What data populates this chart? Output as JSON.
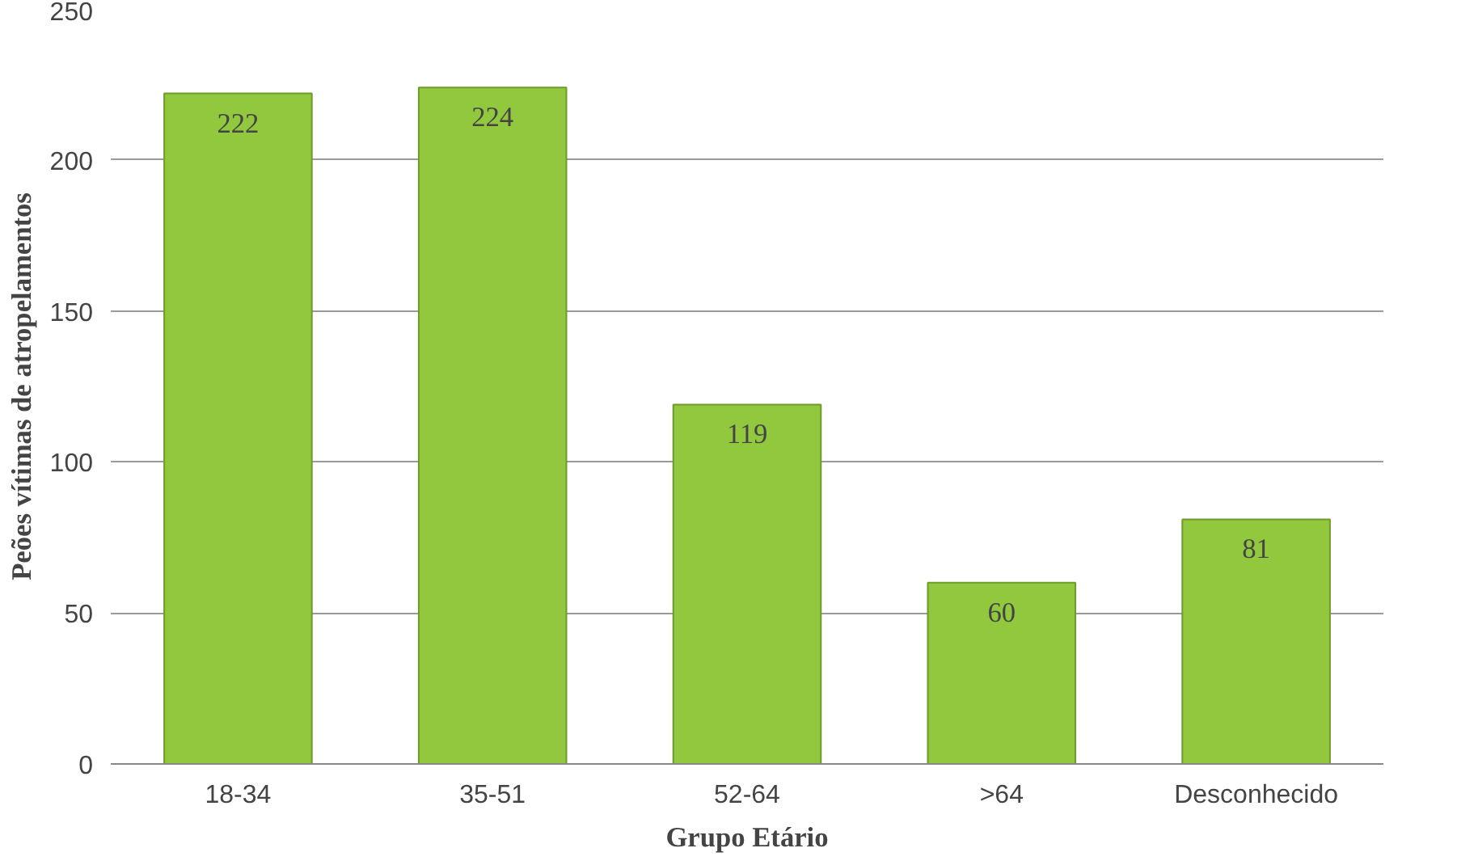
{
  "chart_data": {
    "type": "bar",
    "xlabel": "Grupo Etário",
    "ylabel": "Peões vítimas de atropelamentos",
    "categories": [
      "18-34",
      "35-51",
      "52-64",
      ">64",
      "Desconhecido"
    ],
    "values": [
      222,
      224,
      119,
      60,
      81
    ],
    "color": "#92c83e",
    "ylim": [
      0,
      250
    ],
    "yticks": [
      0,
      50,
      100,
      150,
      200,
      250
    ],
    "grid": "y",
    "data_labels": true
  }
}
